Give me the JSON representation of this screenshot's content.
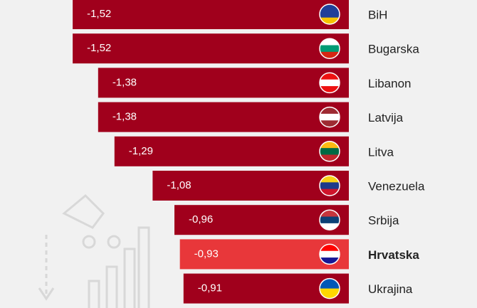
{
  "chart_data": {
    "type": "bar",
    "categories": [
      "BiH",
      "Bugarska",
      "Libanon",
      "Latvija",
      "Litva",
      "Venezuela",
      "Srbija",
      "Hrvatska",
      "Ukrajina"
    ],
    "values": [
      -1.52,
      -1.52,
      -1.38,
      -1.38,
      -1.29,
      -1.08,
      -0.96,
      -0.93,
      -0.91
    ],
    "value_labels": [
      "-1,52",
      "-1,52",
      "-1,38",
      "-1,38",
      "-1,29",
      "-1,08",
      "-0,96",
      "-0,93",
      "-0,91"
    ],
    "colors": [
      "#a0001c",
      "#a0001c",
      "#a0001c",
      "#a0001c",
      "#a0001c",
      "#a0001c",
      "#a0001c",
      "#e8373a",
      "#a0001c"
    ],
    "xlim": [
      -1.92,
      0
    ]
  }
}
